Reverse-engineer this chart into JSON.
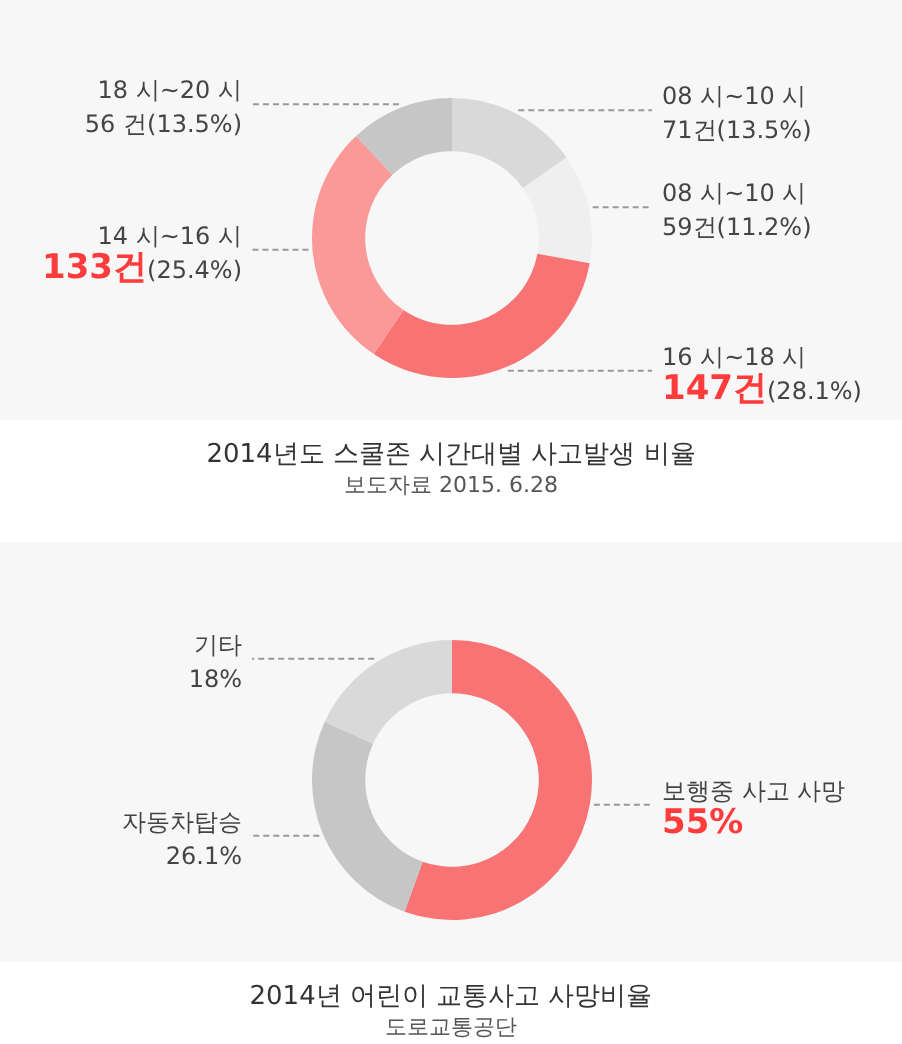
{
  "chart_data": [
    {
      "type": "donut",
      "title": "2014년도 스쿨존 시간대별 사고발생 비율",
      "categories": [
        "08 시~10 시",
        "08 시~10 시",
        "16 시~18 시",
        "14 시~16 시",
        "18 시~20 시"
      ],
      "values": [
        71,
        59,
        147,
        133,
        56
      ],
      "colors": [
        "#d9d9d9",
        "#efefef",
        "#f87474",
        "#fb9999",
        "#c6c6c6"
      ],
      "value_labels": [
        "71건(13.5%)",
        "59건(11.2%)",
        "147건(28.1%)",
        "133건(25.4%)",
        "56 건(13.5%)"
      ],
      "annotations": [
        "보도자료 2015. 6.28"
      ]
    },
    {
      "type": "donut",
      "title": "2014년 어린이 교통사고 사망비율",
      "categories": [
        "보행중 사고 사망",
        "자동차탑승",
        "기타"
      ],
      "values": [
        55,
        26.1,
        18
      ],
      "colors": [
        "#f87474",
        "#c6c6c6",
        "#d9d9d9"
      ],
      "value_labels": [
        "55%",
        "26.1%",
        "18%"
      ],
      "annotations": [
        "도로교통공단"
      ]
    }
  ]
}
